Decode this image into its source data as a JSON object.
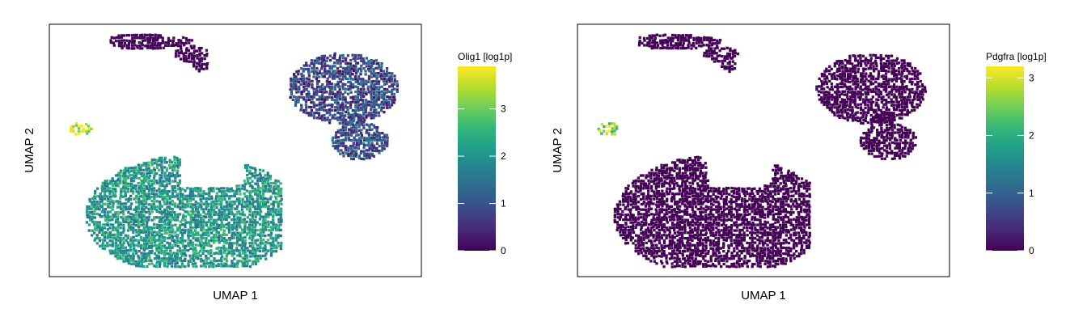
{
  "chart_data": [
    {
      "type": "scatter",
      "xlabel": "UMAP 1",
      "ylabel": "UMAP 2",
      "colorbar": {
        "label": "Olig1 [log1p]",
        "ticks": [
          0,
          1,
          2,
          3
        ],
        "range": [
          0,
          3.9
        ],
        "colormap": "viridis"
      },
      "grid": false,
      "clusters": [
        {
          "name": "",
          "center": [
            0.28,
            0.1
          ],
          "mean_value": 0.05
        },
        {
          "name": "",
          "center": [
            0.77,
            0.25
          ],
          "mean_value": 0.85
        },
        {
          "name": "",
          "center": [
            0.82,
            0.49
          ],
          "mean_value": 1.0
        },
        {
          "name": "",
          "center": [
            0.08,
            0.42
          ],
          "mean_value": 3.6
        },
        {
          "name": "",
          "center": [
            0.37,
            0.8
          ],
          "mean_value": 2.1
        }
      ]
    },
    {
      "type": "scatter",
      "xlabel": "UMAP 1",
      "ylabel": "UMAP 2",
      "colorbar": {
        "label": "Pdgfra [log1p]",
        "ticks": [
          0,
          1,
          2,
          3
        ],
        "range": [
          0,
          3.2
        ],
        "colormap": "viridis"
      },
      "grid": false,
      "clusters": [
        {
          "name": "",
          "center": [
            0.28,
            0.1
          ],
          "mean_value": 0.0
        },
        {
          "name": "",
          "center": [
            0.77,
            0.25
          ],
          "mean_value": 0.0
        },
        {
          "name": "",
          "center": [
            0.82,
            0.49
          ],
          "mean_value": 0.0
        },
        {
          "name": "",
          "center": [
            0.08,
            0.42
          ],
          "mean_value": 2.6
        },
        {
          "name": "",
          "center": [
            0.37,
            0.8
          ],
          "mean_value": 0.0
        }
      ]
    }
  ],
  "colors": {
    "viridis": [
      "#440154",
      "#482878",
      "#3e4a89",
      "#31688e",
      "#26828e",
      "#1f9e89",
      "#35b779",
      "#6ece58",
      "#b5de2b",
      "#fde725"
    ],
    "axis": "#000000",
    "background": "#ffffff"
  }
}
